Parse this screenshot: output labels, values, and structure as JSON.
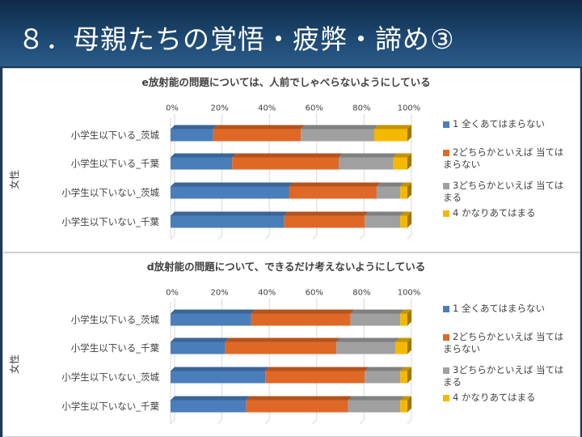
{
  "slide": {
    "title": "８．母親たちの覚悟・疲弊・諦め③"
  },
  "colors": {
    "s1": "#4a7ebb",
    "s2": "#e06826",
    "s3": "#a0a0a0",
    "s4": "#f5b800"
  },
  "chart_data": [
    {
      "type": "bar",
      "orientation": "horizontal",
      "stacked": "percent",
      "title": "e放射能の問題については、人前でしゃべらないようにしている",
      "ylabel": "女性",
      "xlim": [
        0,
        100
      ],
      "xticks": [
        "0%",
        "20%",
        "40%",
        "60%",
        "80%",
        "100%"
      ],
      "categories": [
        "小学生以下いる_茨城",
        "小学生以下いる_千葉",
        "小学生以下いない_茨城",
        "小学生以下いない_千葉"
      ],
      "series": [
        {
          "name": "1 全くあてはまらない",
          "values": [
            18,
            26,
            50,
            48
          ]
        },
        {
          "name": "2どちらかといえば 当てはまらない",
          "values": [
            37,
            45,
            37,
            34
          ]
        },
        {
          "name": "3どちらかといえば 当てはまる",
          "values": [
            31,
            23,
            10,
            15
          ]
        },
        {
          "name": "4 かなりあてはまる",
          "values": [
            14,
            6,
            3,
            3
          ]
        }
      ],
      "legend": "right"
    },
    {
      "type": "bar",
      "orientation": "horizontal",
      "stacked": "percent",
      "title": "d放射能の問題について、できるだけ考えないようにしている",
      "ylabel": "女性",
      "xlim": [
        0,
        100
      ],
      "xticks": [
        "0%",
        "20%",
        "40%",
        "60%",
        "80%",
        "100%"
      ],
      "categories": [
        "小学生以下いる_茨城",
        "小学生以下いる_千葉",
        "小学生以下いない_茨城",
        "小学生以下いない_千葉"
      ],
      "series": [
        {
          "name": "1 全くあてはまらない",
          "values": [
            34,
            23,
            40,
            32
          ]
        },
        {
          "name": "2どちらかといえば 当てはまらない",
          "values": [
            42,
            47,
            42,
            43
          ]
        },
        {
          "name": "3どちらかといえば 当てはまる",
          "values": [
            21,
            25,
            15,
            22
          ]
        },
        {
          "name": "4 かなりあてはまる",
          "values": [
            3,
            5,
            3,
            3
          ]
        }
      ],
      "legend": "right"
    }
  ]
}
